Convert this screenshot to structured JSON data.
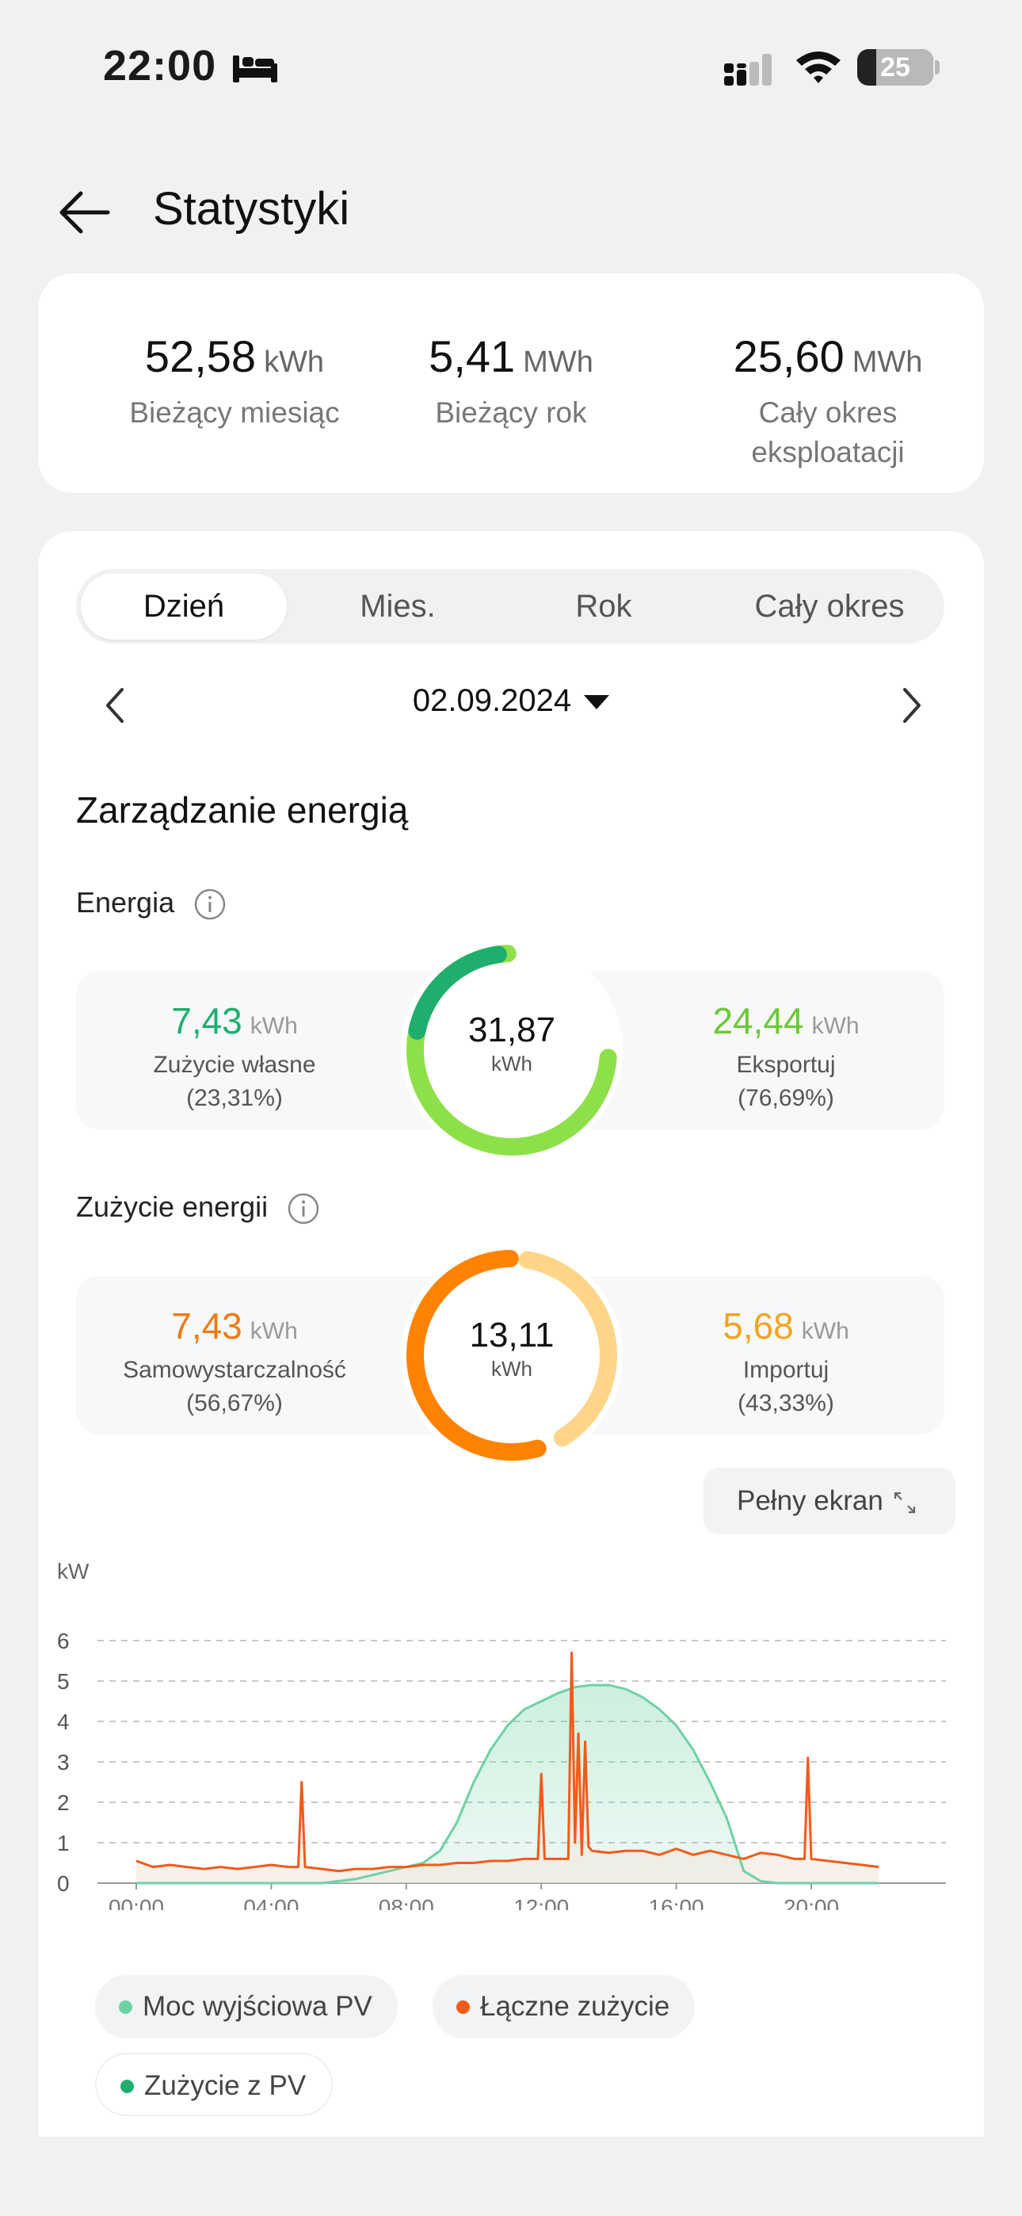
{
  "status_bar": {
    "time": "22:00",
    "battery": "25"
  },
  "header": {
    "title": "Statystyki"
  },
  "summary": [
    {
      "value": "52,58",
      "unit": "kWh",
      "label": "Bieżący miesiąc"
    },
    {
      "value": "5,41",
      "unit": "MWh",
      "label": "Bieżący rok"
    },
    {
      "value": "25,60",
      "unit": "MWh",
      "label": "Cały okres eksploatacji"
    }
  ],
  "tabs": [
    {
      "label": "Dzień"
    },
    {
      "label": "Mies."
    },
    {
      "label": "Rok"
    },
    {
      "label": "Cały okres"
    }
  ],
  "date": {
    "label": "02.09.2024"
  },
  "section_title": "Zarządzanie energią",
  "energy": {
    "label": "Energia",
    "total": "31,87",
    "unit": "kWh",
    "left": {
      "value": "7,43",
      "unit": "kWh",
      "label": "Zużycie własne",
      "percent": "(23,31%)"
    },
    "right": {
      "value": "24,44",
      "unit": "kWh",
      "label": "Eksportuj",
      "percent": "(76,69%)"
    },
    "colors": {
      "left": "#1fae6e",
      "right": "#8ee04a"
    }
  },
  "consumption": {
    "label": "Zużycie energii",
    "total": "13,11",
    "unit": "kWh",
    "left": {
      "value": "7,43",
      "unit": "kWh",
      "label": "Samowystarczalność",
      "percent": "(56,67%)"
    },
    "right": {
      "value": "5,68",
      "unit": "kWh",
      "label": "Importuj",
      "percent": "(43,33%)"
    },
    "colors": {
      "left": "#ff8200",
      "right": "#ffd58a"
    }
  },
  "fullscreen_label": "Pełny ekran",
  "legend": [
    {
      "label": "Moc wyjściowa PV",
      "color": "#6fd1a4"
    },
    {
      "label": "Łączne zużycie",
      "color": "#f25a1b"
    },
    {
      "label": "Zużycie z PV",
      "color": "#1fae6e"
    }
  ],
  "chart_data": {
    "type": "line",
    "ylabel": "kW",
    "ylim": [
      0,
      6
    ],
    "yticks": [
      "0",
      "1",
      "2",
      "3",
      "4",
      "5",
      "6"
    ],
    "xticks": [
      "00:00",
      "04:00",
      "08:00",
      "12:00",
      "16:00",
      "20:00"
    ],
    "x_range_hours": [
      0,
      24
    ],
    "series": [
      {
        "name": "Moc wyjściowa PV",
        "color": "#6fd1a4",
        "x": [
          0,
          5.5,
          6.5,
          7,
          7.5,
          8,
          8.5,
          9,
          9.5,
          10,
          10.5,
          11,
          11.5,
          12,
          12.5,
          13,
          13.5,
          14,
          14.5,
          15,
          15.5,
          16,
          16.5,
          17,
          17.5,
          18,
          18.5,
          19,
          20,
          22
        ],
        "y": [
          0,
          0,
          0.1,
          0.2,
          0.3,
          0.4,
          0.5,
          0.8,
          1.5,
          2.5,
          3.3,
          3.9,
          4.3,
          4.5,
          4.7,
          4.85,
          4.9,
          4.9,
          4.8,
          4.6,
          4.3,
          3.9,
          3.3,
          2.5,
          1.6,
          0.3,
          0.05,
          0,
          0,
          0
        ]
      },
      {
        "name": "Łączne zużycie",
        "color": "#f25a1b",
        "x": [
          0,
          0.5,
          1,
          1.5,
          2,
          2.5,
          3,
          3.5,
          4,
          4.5,
          4.8,
          4.9,
          5.0,
          5.5,
          6,
          6.5,
          7,
          7.5,
          8,
          8.5,
          9,
          9.5,
          10,
          10.5,
          11,
          11.5,
          11.9,
          12.0,
          12.1,
          12.5,
          12.8,
          12.9,
          13.0,
          13.1,
          13.2,
          13.3,
          13.4,
          13.5,
          14,
          14.5,
          15,
          15.5,
          16,
          16.5,
          17,
          17.5,
          18,
          18.5,
          19,
          19.5,
          19.8,
          19.9,
          20.0,
          20.5,
          21,
          21.5,
          22
        ],
        "y": [
          0.55,
          0.4,
          0.45,
          0.4,
          0.35,
          0.4,
          0.35,
          0.4,
          0.45,
          0.4,
          0.4,
          2.5,
          0.4,
          0.35,
          0.3,
          0.35,
          0.35,
          0.4,
          0.4,
          0.45,
          0.45,
          0.5,
          0.5,
          0.55,
          0.55,
          0.6,
          0.6,
          2.7,
          0.6,
          0.6,
          0.6,
          5.7,
          1.0,
          3.7,
          0.7,
          3.5,
          0.9,
          0.8,
          0.75,
          0.8,
          0.8,
          0.7,
          0.85,
          0.7,
          0.8,
          0.7,
          0.6,
          0.75,
          0.7,
          0.6,
          0.6,
          3.1,
          0.6,
          0.55,
          0.5,
          0.45,
          0.4
        ]
      }
    ]
  }
}
